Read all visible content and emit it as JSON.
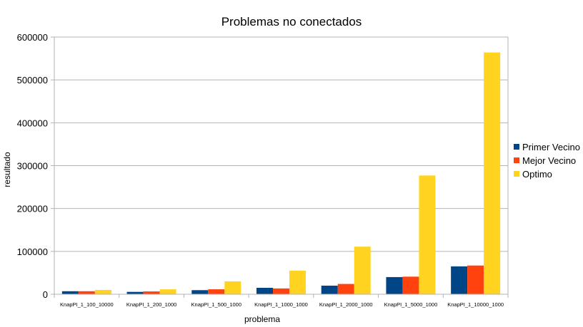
{
  "chart_data": {
    "type": "bar",
    "title": "Problemas no conectados",
    "xlabel": "problema",
    "ylabel": "resultado",
    "ylim": [
      0,
      600000
    ],
    "yticks": [
      0,
      100000,
      200000,
      300000,
      400000,
      500000,
      600000
    ],
    "grid": true,
    "legend_position": "right",
    "categories": [
      "KnapPI_1_100_10000",
      "KnapPI_1_200_1000",
      "KnapPI_1_500_1000",
      "KnapPI_1_1000_1000",
      "KnapPI_1_2000_1000",
      "KnapPI_1_5000_1000",
      "KnapPI_1_10000_1000"
    ],
    "series": [
      {
        "name": "Primer Vecino",
        "color": "#004586",
        "values": [
          7000,
          5500,
          9500,
          15000,
          20000,
          40000,
          65000
        ]
      },
      {
        "name": "Mejor Vecino",
        "color": "#ff420e",
        "values": [
          7000,
          6500,
          11500,
          13500,
          24000,
          41000,
          67000
        ]
      },
      {
        "name": "Optimo",
        "color": "#ffd320",
        "values": [
          10000,
          11500,
          30000,
          55000,
          111000,
          277000,
          564000
        ]
      }
    ]
  }
}
